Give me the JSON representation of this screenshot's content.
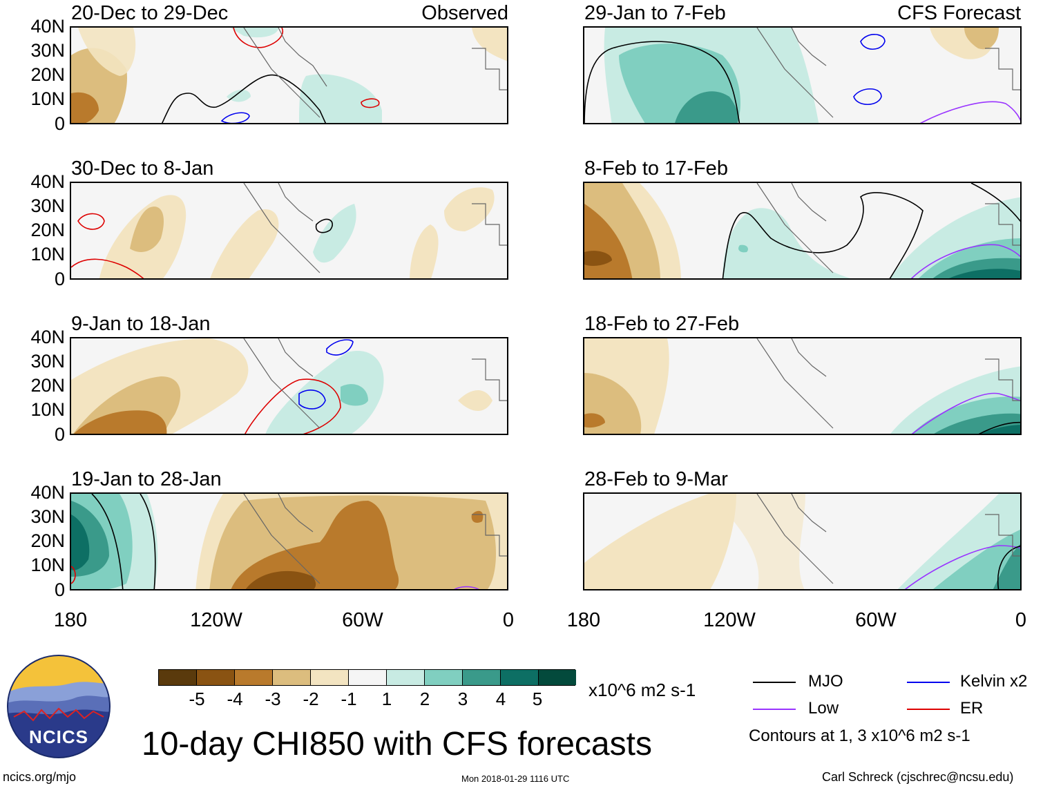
{
  "panels": [
    {
      "title": "20-Dec to 29-Dec",
      "corner": "Observed"
    },
    {
      "title": "30-Dec to 8-Jan",
      "corner": ""
    },
    {
      "title": "9-Jan to 18-Jan",
      "corner": ""
    },
    {
      "title": "19-Jan to 28-Jan",
      "corner": ""
    },
    {
      "title": "29-Jan to 7-Feb",
      "corner": "CFS Forecast"
    },
    {
      "title": "8-Feb to 17-Feb",
      "corner": ""
    },
    {
      "title": "18-Feb to 27-Feb",
      "corner": ""
    },
    {
      "title": "28-Feb to 9-Mar",
      "corner": ""
    }
  ],
  "y_ticks": [
    "40N",
    "30N",
    "20N",
    "10N",
    "0"
  ],
  "x_ticks": [
    "180",
    "120W",
    "60W",
    "0"
  ],
  "colorbar": {
    "labels": [
      "-5",
      "-4",
      "-3",
      "-2",
      "-1",
      "1",
      "2",
      "3",
      "4",
      "5"
    ],
    "units": "x10^6 m2 s-1",
    "colors": [
      "#5a3a0c",
      "#8a5312",
      "#b97a2c",
      "#dcbd7e",
      "#f3e4c1",
      "#f5f5f5",
      "#c8ebe3",
      "#80cfc0",
      "#3a9a8a",
      "#0d6f64",
      "#034a3c"
    ]
  },
  "legend": {
    "mjo": "MJO",
    "low": "Low",
    "kelvin": "Kelvin x2",
    "er": "ER",
    "contours": "Contours at 1, 3 x10^6 m2 s-1",
    "colors": {
      "mjo": "#000000",
      "low": "#9933ff",
      "kelvin": "#0000ee",
      "er": "#dd0000"
    }
  },
  "main_title": "10-day CHI850 with CFS forecasts",
  "logo_text": "NCICS",
  "footer": {
    "left": "ncics.org/mjo",
    "center": "Mon 2018-01-29 1116 UTC",
    "right": "Carl Schreck (cjschrec@ncsu.edu)"
  }
}
